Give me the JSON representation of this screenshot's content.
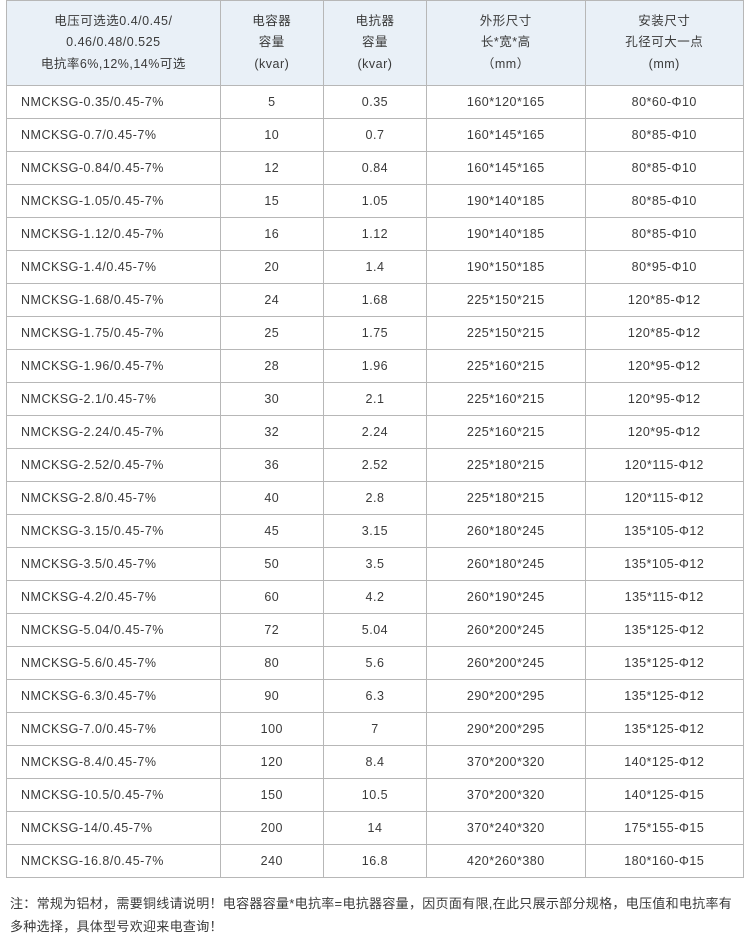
{
  "table": {
    "header_bg": "#e9f0f7",
    "border_color": "#b7b7b7",
    "text_color": "#3a3a3a",
    "font_size": 12.5,
    "col_widths": [
      "29%",
      "14%",
      "14%",
      "21.5%",
      "21.5%"
    ],
    "headers": [
      "电压可选选0.4/0.45/\n0.46/0.48/0.525\n电抗率6%,12%,14%可选",
      "电容器\n容量\n(kvar)",
      "电抗器\n容量\n(kvar)",
      "外形尺寸\n长*宽*高\n（mm）",
      "安装尺寸\n孔径可大一点\n(mm)"
    ],
    "rows": [
      [
        "NMCKSG-0.35/0.45-7%",
        "5",
        "0.35",
        "160*120*165",
        "80*60-Φ10"
      ],
      [
        "NMCKSG-0.7/0.45-7%",
        "10",
        "0.7",
        "160*145*165",
        "80*85-Φ10"
      ],
      [
        "NMCKSG-0.84/0.45-7%",
        "12",
        "0.84",
        "160*145*165",
        "80*85-Φ10"
      ],
      [
        "NMCKSG-1.05/0.45-7%",
        "15",
        "1.05",
        "190*140*185",
        "80*85-Φ10"
      ],
      [
        "NMCKSG-1.12/0.45-7%",
        "16",
        "1.12",
        "190*140*185",
        "80*85-Φ10"
      ],
      [
        "NMCKSG-1.4/0.45-7%",
        "20",
        "1.4",
        "190*150*185",
        "80*95-Φ10"
      ],
      [
        "NMCKSG-1.68/0.45-7%",
        "24",
        "1.68",
        "225*150*215",
        "120*85-Φ12"
      ],
      [
        "NMCKSG-1.75/0.45-7%",
        "25",
        "1.75",
        "225*150*215",
        "120*85-Φ12"
      ],
      [
        "NMCKSG-1.96/0.45-7%",
        "28",
        "1.96",
        "225*160*215",
        "120*95-Φ12"
      ],
      [
        "NMCKSG-2.1/0.45-7%",
        "30",
        "2.1",
        "225*160*215",
        "120*95-Φ12"
      ],
      [
        "NMCKSG-2.24/0.45-7%",
        "32",
        "2.24",
        "225*160*215",
        "120*95-Φ12"
      ],
      [
        "NMCKSG-2.52/0.45-7%",
        "36",
        "2.52",
        "225*180*215",
        "120*115-Φ12"
      ],
      [
        "NMCKSG-2.8/0.45-7%",
        "40",
        "2.8",
        "225*180*215",
        "120*115-Φ12"
      ],
      [
        "NMCKSG-3.15/0.45-7%",
        "45",
        "3.15",
        "260*180*245",
        "135*105-Φ12"
      ],
      [
        "NMCKSG-3.5/0.45-7%",
        "50",
        "3.5",
        "260*180*245",
        "135*105-Φ12"
      ],
      [
        "NMCKSG-4.2/0.45-7%",
        "60",
        "4.2",
        "260*190*245",
        "135*115-Φ12"
      ],
      [
        "NMCKSG-5.04/0.45-7%",
        "72",
        "5.04",
        "260*200*245",
        "135*125-Φ12"
      ],
      [
        "NMCKSG-5.6/0.45-7%",
        "80",
        "5.6",
        "260*200*245",
        "135*125-Φ12"
      ],
      [
        "NMCKSG-6.3/0.45-7%",
        "90",
        "6.3",
        "290*200*295",
        "135*125-Φ12"
      ],
      [
        "NMCKSG-7.0/0.45-7%",
        "100",
        "7",
        "290*200*295",
        "135*125-Φ12"
      ],
      [
        "NMCKSG-8.4/0.45-7%",
        "120",
        "8.4",
        "370*200*320",
        "140*125-Φ12"
      ],
      [
        "NMCKSG-10.5/0.45-7%",
        "150",
        "10.5",
        "370*200*320",
        "140*125-Φ15"
      ],
      [
        "NMCKSG-14/0.45-7%",
        "200",
        "14",
        "370*240*320",
        "175*155-Φ15"
      ],
      [
        "NMCKSG-16.8/0.45-7%",
        "240",
        "16.8",
        "420*260*380",
        "180*160-Φ15"
      ]
    ]
  },
  "note": "注：常规为铝材，需要铜线请说明！电容器容量*电抗率=电抗器容量，因页面有限,在此只展示部分规格，电压值和电抗率有多种选择，具体型号欢迎来电查询！"
}
